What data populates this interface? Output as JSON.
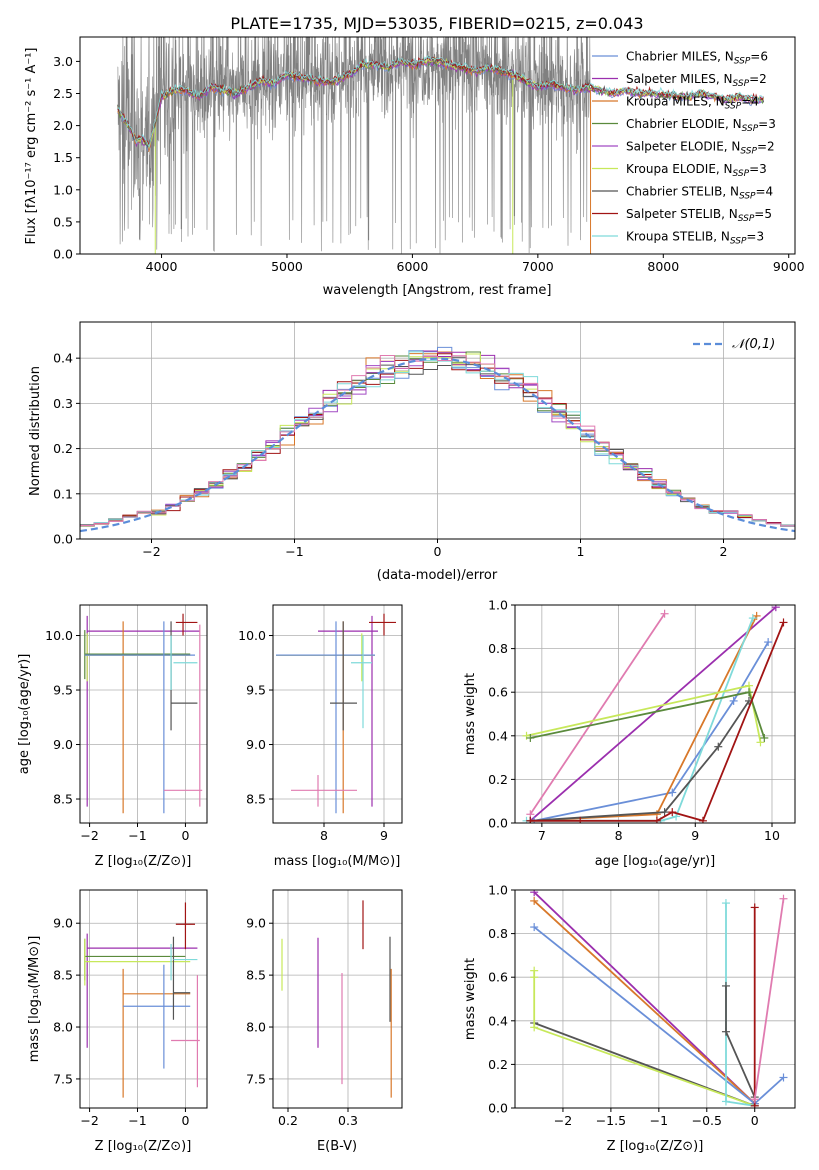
{
  "figure": {
    "title": "PLATE=1735, MJD=53035, FIBERID=0215, z=0.043"
  },
  "colors": {
    "Chabrier MILES": "#6a8fd8",
    "Salpeter MILES": "#9b2fae",
    "Kroupa MILES": "#d8782a",
    "Chabrier ELODIE": "#5a8a3c",
    "Salpeter ELODIE": "#a24bc4",
    "Kroupa ELODIE": "#c7e85a",
    "Chabrier STELIB": "#555555",
    "Salpeter STELIB": "#a11414",
    "Kroupa STELIB": "#7fdada",
    "Kroupa MILES pink": "#e07bb0",
    "observed": "#808080"
  },
  "chart_data": [
    {
      "id": "spectrum",
      "type": "line",
      "title": "PLATE=1735, MJD=53035, FIBERID=0215, z=0.043",
      "xlabel": "wavelength [Angstrom, rest frame]",
      "ylabel": "Flux [f_λ10^-17 erg cm^-2 s^-1 A^-1]",
      "xlim": [
        3350,
        9050
      ],
      "ylim": [
        0,
        3.38
      ],
      "xticks": [
        4000,
        5000,
        6000,
        7000,
        8000,
        9000
      ],
      "yticks": [
        0.0,
        0.5,
        1.0,
        1.5,
        2.0,
        2.5,
        3.0
      ],
      "grid": false,
      "legend_position": "right",
      "legend": [
        {
          "label": "Chabrier MILES, N_SSP=6",
          "text": "Chabrier MILES, N",
          "nssp": "6",
          "key": "Chabrier MILES"
        },
        {
          "label": "Salpeter MILES, N_SSP=2",
          "text": "Salpeter MILES, N",
          "nssp": "2",
          "key": "Salpeter MILES"
        },
        {
          "label": "Kroupa MILES, N_SSP=4",
          "text": "Kroupa MILES, N",
          "nssp": "4",
          "key": "Kroupa MILES"
        },
        {
          "label": "Chabrier ELODIE, N_SSP=3",
          "text": "Chabrier ELODIE, N",
          "nssp": "3",
          "key": "Chabrier ELODIE"
        },
        {
          "label": "Salpeter ELODIE, N_SSP=2",
          "text": "Salpeter ELODIE, N",
          "nssp": "2",
          "key": "Salpeter ELODIE"
        },
        {
          "label": "Kroupa ELODIE, N_SSP=3",
          "text": "Kroupa ELODIE, N",
          "nssp": "3",
          "key": "Kroupa ELODIE"
        },
        {
          "label": "Chabrier STELIB, N_SSP=4",
          "text": "Chabrier STELIB, N",
          "nssp": "4",
          "key": "Chabrier STELIB"
        },
        {
          "label": "Salpeter STELIB, N_SSP=5",
          "text": "Salpeter STELIB, N",
          "nssp": "5",
          "key": "Salpeter STELIB"
        },
        {
          "label": "Kroupa STELIB, N_SSP=3",
          "text": "Kroupa STELIB, N",
          "nssp": "3",
          "key": "Kroupa STELIB"
        }
      ],
      "model_continuum": {
        "x": [
          3650,
          3700,
          3750,
          3800,
          3850,
          3900,
          3950,
          4000,
          4100,
          4200,
          4300,
          4400,
          4500,
          4600,
          4700,
          4800,
          4900,
          5000,
          5100,
          5200,
          5300,
          5400,
          5500,
          5600,
          5700,
          5800,
          5900,
          6000,
          6100,
          6200,
          6300,
          6400,
          6500,
          6600,
          6700,
          6800,
          6900,
          7000,
          7100,
          7200,
          7300,
          7400,
          7500,
          7600,
          7700,
          7800,
          7900,
          8000,
          8100,
          8200,
          8300,
          8400,
          8500,
          8600,
          8700,
          8800
        ],
        "y": [
          2.25,
          2.1,
          1.95,
          1.75,
          1.8,
          1.65,
          2.05,
          2.45,
          2.55,
          2.55,
          2.45,
          2.6,
          2.55,
          2.5,
          2.6,
          2.7,
          2.65,
          2.8,
          2.75,
          2.72,
          2.68,
          2.7,
          2.8,
          2.95,
          2.95,
          2.9,
          3.0,
          2.95,
          3.0,
          3.0,
          2.95,
          2.9,
          2.85,
          2.9,
          2.85,
          2.8,
          2.7,
          2.6,
          2.65,
          2.6,
          2.55,
          2.6,
          2.55,
          2.5,
          2.55,
          2.5,
          2.5,
          2.48,
          2.45,
          2.45,
          2.5,
          2.45,
          2.4,
          2.45,
          2.4,
          2.4
        ]
      },
      "observed_range": [
        3650,
        7420
      ]
    },
    {
      "id": "residuals",
      "type": "histogram",
      "xlabel": "(data-model)/error",
      "ylabel": "Normed distribution",
      "xlim": [
        -2.5,
        2.5
      ],
      "ylim": [
        0,
        0.48
      ],
      "xticks": [
        -2,
        -1,
        0,
        1,
        2
      ],
      "yticks": [
        0.0,
        0.1,
        0.2,
        0.3,
        0.4
      ],
      "grid": true,
      "legend_position": "top-right",
      "legend": [
        {
          "label": "𝒩(0,1)",
          "style": "dashed",
          "color": "#5b8dd9"
        }
      ],
      "bin_width": 0.1
    },
    {
      "id": "age_vs_Z",
      "type": "errorbar",
      "xlabel": "Z [log10(Z/Z⊙)]",
      "ylabel": "age  [log10(age/yr)]",
      "xlim": [
        -2.2,
        0.45
      ],
      "ylim": [
        8.28,
        10.28
      ],
      "xticks": [
        -2,
        -1,
        0
      ],
      "yticks": [
        8.5,
        9.0,
        9.5,
        10.0
      ],
      "grid": true
    },
    {
      "id": "age_vs_mass",
      "type": "errorbar",
      "xlabel": "mass [log10(M/M⊙)]",
      "xlim": [
        7.15,
        9.3
      ],
      "ylim": [
        8.28,
        10.28
      ],
      "xticks": [
        8,
        9
      ],
      "yticks": [
        8.5,
        9.0,
        9.5,
        10.0
      ],
      "grid": true
    },
    {
      "id": "weight_vs_age",
      "type": "line",
      "xlabel": "age  [log10(age/yr)]",
      "ylabel": "mass weight",
      "xlim": [
        6.65,
        10.3
      ],
      "ylim": [
        0,
        1.0
      ],
      "xticks": [
        7,
        8,
        9,
        10
      ],
      "yticks": [
        0.0,
        0.2,
        0.4,
        0.6,
        0.8,
        1.0
      ],
      "grid": true,
      "series": [
        {
          "key": "Kroupa MILES pink",
          "x": [
            6.85,
            8.6
          ],
          "y": [
            0.04,
            0.96
          ]
        },
        {
          "key": "Salpeter MILES",
          "x": [
            6.85,
            10.05
          ],
          "y": [
            0.01,
            0.99
          ]
        },
        {
          "key": "Chabrier MILES",
          "x": [
            6.9,
            8.7,
            9.5,
            9.95
          ],
          "y": [
            0.01,
            0.14,
            0.56,
            0.83
          ]
        },
        {
          "key": "Kroupa MILES",
          "x": [
            6.85,
            8.5,
            9.8
          ],
          "y": [
            0.01,
            0.04,
            0.95
          ]
        },
        {
          "key": "Kroupa STELIB",
          "x": [
            6.8,
            8.55,
            8.75,
            9.75
          ],
          "y": [
            0.01,
            0.01,
            0.03,
            0.94
          ]
        },
        {
          "key": "Kroupa ELODIE",
          "x": [
            6.8,
            9.7,
            9.85
          ],
          "y": [
            0.4,
            0.63,
            0.37
          ]
        },
        {
          "key": "Chabrier ELODIE",
          "x": [
            6.85,
            9.7,
            9.9
          ],
          "y": [
            0.39,
            0.6,
            0.39
          ]
        },
        {
          "key": "Chabrier STELIB",
          "x": [
            6.85,
            8.6,
            9.3,
            9.7
          ],
          "y": [
            0.01,
            0.05,
            0.35,
            0.56
          ]
        },
        {
          "key": "Salpeter STELIB",
          "x": [
            6.85,
            7.5,
            8.5,
            8.7,
            9.1,
            10.15
          ],
          "y": [
            0.01,
            0.01,
            0.01,
            0.05,
            0.01,
            0.92
          ]
        }
      ]
    },
    {
      "id": "mass_vs_Z",
      "type": "errorbar",
      "xlabel": "Z [log10(Z/Z⊙)]",
      "ylabel": "mass [log10(M/M⊙)]",
      "xlim": [
        -2.2,
        0.45
      ],
      "ylim": [
        7.22,
        9.32
      ],
      "xticks": [
        -2,
        -1,
        0
      ],
      "yticks": [
        7.5,
        8.0,
        8.5,
        9.0
      ],
      "grid": true
    },
    {
      "id": "mass_vs_ebv",
      "type": "errorbar",
      "xlabel": "E(B-V)",
      "xlim": [
        0.175,
        0.39
      ],
      "ylim": [
        7.22,
        9.32
      ],
      "xticks": [
        0.2,
        0.3
      ],
      "yticks": [
        7.5,
        8.0,
        8.5,
        9.0
      ],
      "grid": true
    },
    {
      "id": "weight_vs_Z",
      "type": "line",
      "xlabel": "Z [log10(Z/Z⊙)]",
      "ylabel": "mass weight",
      "xlim": [
        -2.5,
        0.42
      ],
      "ylim": [
        0,
        1.0
      ],
      "xticks": [
        -2.0,
        -1.5,
        -1.0,
        -0.5,
        0.0
      ],
      "yticks": [
        0.0,
        0.2,
        0.4,
        0.6,
        0.8,
        1.0
      ],
      "grid": true,
      "series": [
        {
          "key": "Salpeter MILES",
          "x": [
            -2.3,
            0.0
          ],
          "y": [
            0.99,
            0.02
          ]
        },
        {
          "key": "Kroupa MILES",
          "x": [
            -2.3,
            0.0
          ],
          "y": [
            0.95,
            0.02
          ]
        },
        {
          "key": "Chabrier MILES",
          "x": [
            -2.3,
            0.0,
            0.3
          ],
          "y": [
            0.83,
            0.02,
            0.14
          ]
        },
        {
          "key": "Chabrier STELIB",
          "x": [
            -2.3,
            0.0
          ],
          "y": [
            0.39,
            0.01
          ]
        },
        {
          "key": "Kroupa ELODIE",
          "x": [
            -2.3,
            -2.3,
            -2.3,
            0.0
          ],
          "y": [
            0.63,
            0.6,
            0.37,
            0.01
          ]
        },
        {
          "key": "Kroupa STELIB",
          "x": [
            -0.3,
            -0.3,
            0.0
          ],
          "y": [
            0.94,
            0.03,
            0.01
          ]
        },
        {
          "key": "Chabrier STELIB",
          "x": [
            -0.3,
            -0.3,
            0.0
          ],
          "y": [
            0.56,
            0.35,
            0.05
          ]
        },
        {
          "key": "Salpeter STELIB",
          "x": [
            0.0,
            0.0
          ],
          "y": [
            0.92,
            0.01
          ]
        },
        {
          "key": "Kroupa MILES pink",
          "x": [
            0.0,
            0.3
          ],
          "y": [
            0.04,
            0.96
          ]
        }
      ]
    }
  ]
}
